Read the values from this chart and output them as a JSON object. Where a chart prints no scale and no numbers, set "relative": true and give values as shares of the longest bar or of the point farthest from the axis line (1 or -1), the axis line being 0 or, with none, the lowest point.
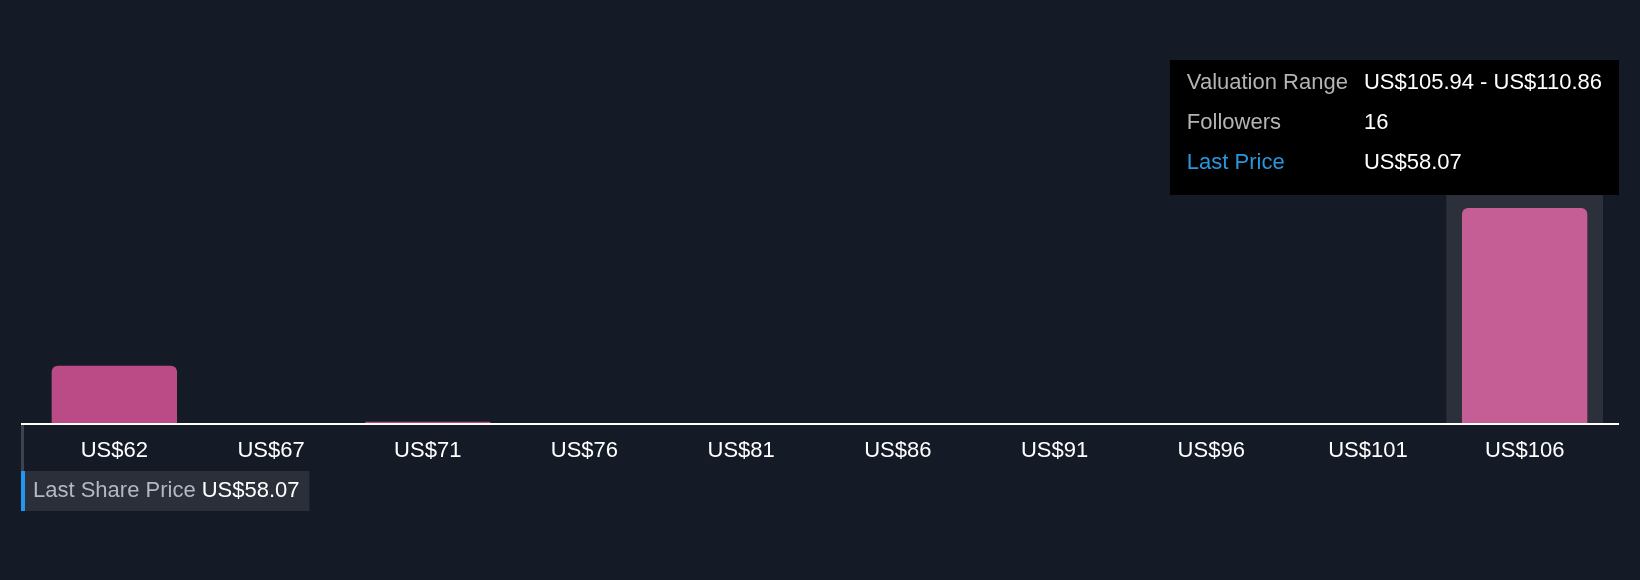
{
  "chart_data": {
    "type": "bar",
    "relative": true,
    "categories": [
      "US$62",
      "US$67",
      "US$71",
      "US$76",
      "US$81",
      "US$86",
      "US$91",
      "US$96",
      "US$101",
      "US$106"
    ],
    "values": [
      0.27,
      0,
      0.01,
      0,
      0,
      0,
      0,
      0,
      0,
      1
    ],
    "colors": [
      "#bb4b87",
      "#bb4b87",
      "#bb4b87",
      "#bb4b87",
      "#bb4b87",
      "#bb4b87",
      "#bb4b87",
      "#bb4b87",
      "#bb4b87",
      "#c45e95"
    ],
    "bands": [
      {
        "axis": "x",
        "from": "US$106",
        "to": "US$106",
        "color": "#2c303a"
      }
    ],
    "annotations": [
      "Valuation Range",
      "US$105.94 - US$110.86",
      "Followers",
      "16",
      "Last Price",
      "US$58.07",
      "Last Share Price",
      "US$58.07"
    ]
  }
}
